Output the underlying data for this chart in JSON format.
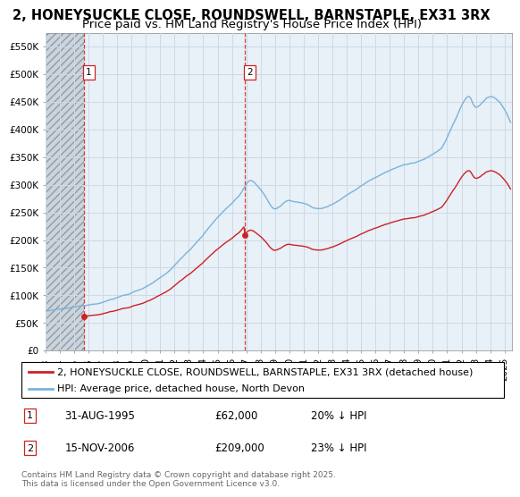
{
  "title_line1": "2, HONEYSUCKLE CLOSE, ROUNDSWELL, BARNSTAPLE, EX31 3RX",
  "title_line2": "Price paid vs. HM Land Registry's House Price Index (HPI)",
  "ylim": [
    0,
    575000
  ],
  "yticks": [
    0,
    50000,
    100000,
    150000,
    200000,
    250000,
    300000,
    350000,
    400000,
    450000,
    500000,
    550000
  ],
  "ytick_labels": [
    "£0",
    "£50K",
    "£100K",
    "£150K",
    "£200K",
    "£250K",
    "£300K",
    "£350K",
    "£400K",
    "£450K",
    "£500K",
    "£550K"
  ],
  "xlim_start": 1993.0,
  "xlim_end": 2025.5,
  "xtick_years": [
    1993,
    1994,
    1995,
    1996,
    1997,
    1998,
    1999,
    2000,
    2001,
    2002,
    2003,
    2004,
    2005,
    2006,
    2007,
    2008,
    2009,
    2010,
    2011,
    2012,
    2013,
    2014,
    2015,
    2016,
    2017,
    2018,
    2019,
    2020,
    2021,
    2022,
    2023,
    2024,
    2025
  ],
  "sale1_x": 1995.664,
  "sale1_y": 62000,
  "sale2_x": 2006.872,
  "sale2_y": 209000,
  "annotation1": [
    "1",
    "31-AUG-1995",
    "£62,000",
    "20% ↓ HPI"
  ],
  "annotation2": [
    "2",
    "15-NOV-2006",
    "£209,000",
    "23% ↓ HPI"
  ],
  "legend_line1": "2, HONEYSUCKLE CLOSE, ROUNDSWELL, BARNSTAPLE, EX31 3RX (detached house)",
  "legend_line2": "HPI: Average price, detached house, North Devon",
  "footer": "Contains HM Land Registry data © Crown copyright and database right 2025.\nThis data is licensed under the Open Government Licence v3.0.",
  "hpi_color": "#7ab4d8",
  "sold_color": "#cc2222",
  "background_plot": "#e8f0f8",
  "hatch_color": "#c8d4e0",
  "grid_color": "#d0d8e4",
  "vline_color": "#cc2222",
  "title_fontsize": 10.5,
  "subtitle_fontsize": 9.5,
  "tick_fontsize": 7.5,
  "legend_fontsize": 8,
  "ann_fontsize": 8.5
}
